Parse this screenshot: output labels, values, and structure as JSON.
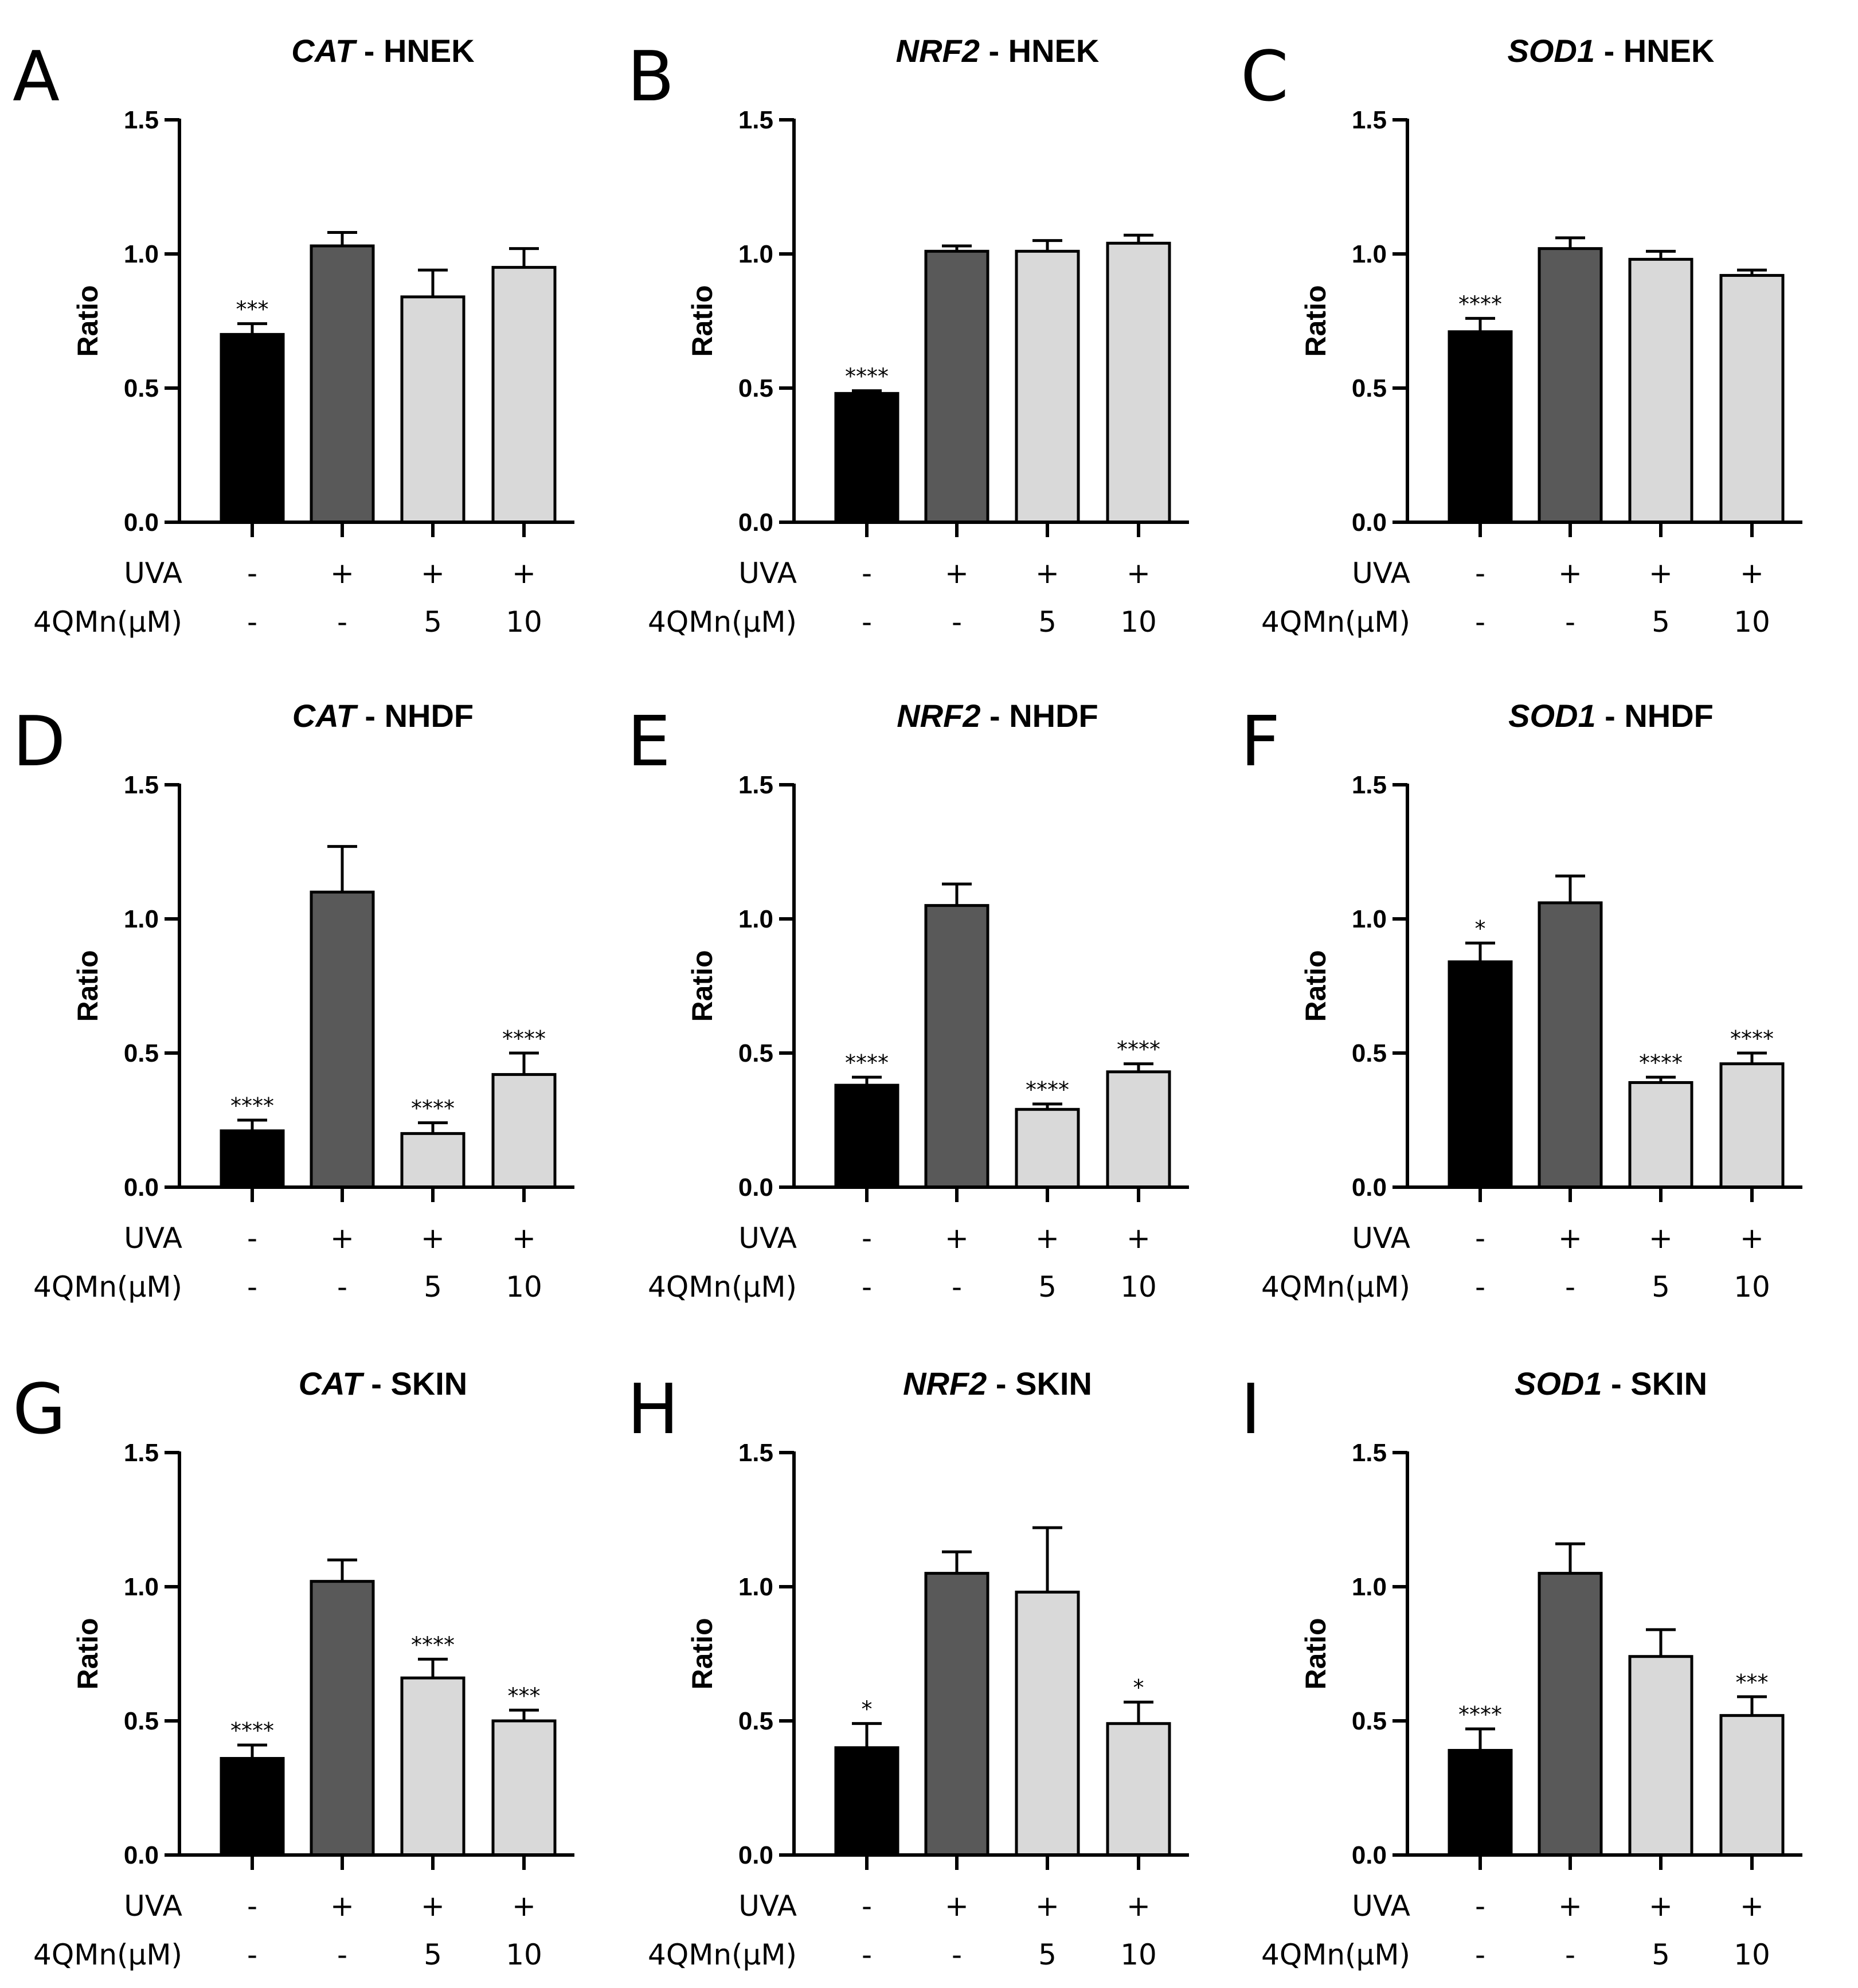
{
  "figure": {
    "row_labels": {
      "uva": "UVA",
      "dose": "4QMn(μM)"
    },
    "conditions": {
      "uva": [
        "-",
        "+",
        "+",
        "+"
      ],
      "dose": [
        "-",
        "-",
        "5",
        "10"
      ]
    },
    "colors": {
      "control": "#000000",
      "uva": "#595959",
      "treated": "#d9d9d9",
      "axis": "#000000"
    }
  },
  "chart_data": [
    {
      "panel": "A",
      "gene": "CAT",
      "tissue": " - HNEK",
      "type": "bar",
      "ylabel": "Ratio",
      "ylim": [
        0,
        1.5
      ],
      "yticks": [
        "0.0",
        "0.5",
        "1.0",
        "1.5"
      ],
      "values": [
        0.7,
        1.03,
        0.84,
        0.95
      ],
      "errors": [
        0.04,
        0.05,
        0.1,
        0.07
      ],
      "significance": [
        "***",
        "",
        "",
        ""
      ]
    },
    {
      "panel": "B",
      "gene": "NRF2",
      "tissue": " - HNEK",
      "type": "bar",
      "ylabel": "Ratio",
      "ylim": [
        0,
        1.5
      ],
      "yticks": [
        "0.0",
        "0.5",
        "1.0",
        "1.5"
      ],
      "values": [
        0.48,
        1.01,
        1.01,
        1.04
      ],
      "errors": [
        0.01,
        0.02,
        0.04,
        0.03
      ],
      "significance": [
        "****",
        "",
        "",
        ""
      ]
    },
    {
      "panel": "C",
      "gene": "SOD1",
      "tissue": " - HNEK",
      "type": "bar",
      "ylabel": "Ratio",
      "ylim": [
        0,
        1.5
      ],
      "yticks": [
        "0.0",
        "0.5",
        "1.0",
        "1.5"
      ],
      "values": [
        0.71,
        1.02,
        0.98,
        0.92
      ],
      "errors": [
        0.05,
        0.04,
        0.03,
        0.02
      ],
      "significance": [
        "****",
        "",
        "",
        ""
      ]
    },
    {
      "panel": "D",
      "gene": "CAT",
      "tissue": " - NHDF",
      "type": "bar",
      "ylabel": "Ratio",
      "ylim": [
        0,
        1.5
      ],
      "yticks": [
        "0.0",
        "0.5",
        "1.0",
        "1.5"
      ],
      "values": [
        0.21,
        1.1,
        0.2,
        0.42
      ],
      "errors": [
        0.04,
        0.17,
        0.04,
        0.08
      ],
      "significance": [
        "****",
        "",
        "****",
        "****"
      ]
    },
    {
      "panel": "E",
      "gene": "NRF2",
      "tissue": " - NHDF",
      "type": "bar",
      "ylabel": "Ratio",
      "ylim": [
        0,
        1.5
      ],
      "yticks": [
        "0.0",
        "0.5",
        "1.0",
        "1.5"
      ],
      "values": [
        0.38,
        1.05,
        0.29,
        0.43
      ],
      "errors": [
        0.03,
        0.08,
        0.02,
        0.03
      ],
      "significance": [
        "****",
        "",
        "****",
        "****"
      ]
    },
    {
      "panel": "F",
      "gene": "SOD1",
      "tissue": " - NHDF",
      "type": "bar",
      "ylabel": "Ratio",
      "ylim": [
        0,
        1.5
      ],
      "yticks": [
        "0.0",
        "0.5",
        "1.0",
        "1.5"
      ],
      "values": [
        0.84,
        1.06,
        0.39,
        0.46
      ],
      "errors": [
        0.07,
        0.1,
        0.02,
        0.04
      ],
      "significance": [
        "*",
        "",
        "****",
        "****"
      ]
    },
    {
      "panel": "G",
      "gene": "CAT",
      "tissue": " - SKIN",
      "type": "bar",
      "ylabel": "Ratio",
      "ylim": [
        0,
        1.5
      ],
      "yticks": [
        "0.0",
        "0.5",
        "1.0",
        "1.5"
      ],
      "values": [
        0.36,
        1.02,
        0.66,
        0.5
      ],
      "errors": [
        0.05,
        0.08,
        0.07,
        0.04
      ],
      "significance": [
        "****",
        "",
        "****",
        "***"
      ]
    },
    {
      "panel": "H",
      "gene": "NRF2",
      "tissue": " - SKIN",
      "type": "bar",
      "ylabel": "Ratio",
      "ylim": [
        0,
        1.5
      ],
      "yticks": [
        "0.0",
        "0.5",
        "1.0",
        "1.5"
      ],
      "values": [
        0.4,
        1.05,
        0.98,
        0.49
      ],
      "errors": [
        0.09,
        0.08,
        0.24,
        0.08
      ],
      "significance": [
        "*",
        "",
        "",
        "*"
      ]
    },
    {
      "panel": "I",
      "gene": "SOD1",
      "tissue": " - SKIN",
      "type": "bar",
      "ylabel": "Ratio",
      "ylim": [
        0,
        1.5
      ],
      "yticks": [
        "0.0",
        "0.5",
        "1.0",
        "1.5"
      ],
      "values": [
        0.39,
        1.05,
        0.74,
        0.52
      ],
      "errors": [
        0.08,
        0.11,
        0.1,
        0.07
      ],
      "significance": [
        "****",
        "",
        "",
        "***"
      ]
    }
  ]
}
